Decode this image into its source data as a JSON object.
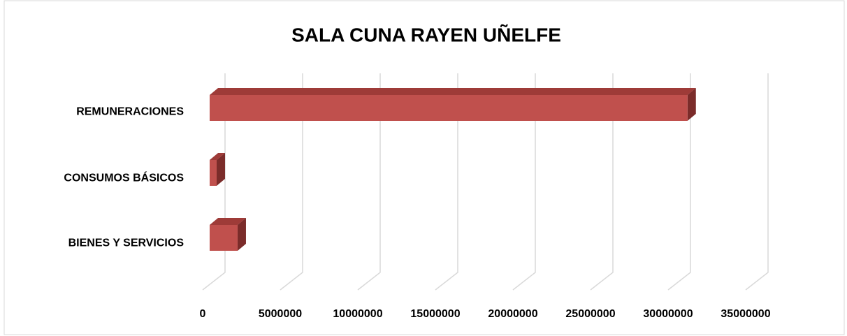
{
  "chart_data": {
    "type": "bar3d",
    "orientation": "horizontal",
    "title": "SALA CUNA RAYEN UÑELFE",
    "categories": [
      "REMUNERACIONES",
      "CONSUMOS BÁSICOS",
      "BIENES Y SERVICIOS"
    ],
    "values": [
      30800000,
      450000,
      1800000
    ],
    "color": "#c0504d",
    "xlim": [
      0,
      35000000
    ],
    "xticks": [
      0,
      5000000,
      10000000,
      15000000,
      20000000,
      25000000,
      30000000,
      35000000
    ],
    "grid": true
  }
}
